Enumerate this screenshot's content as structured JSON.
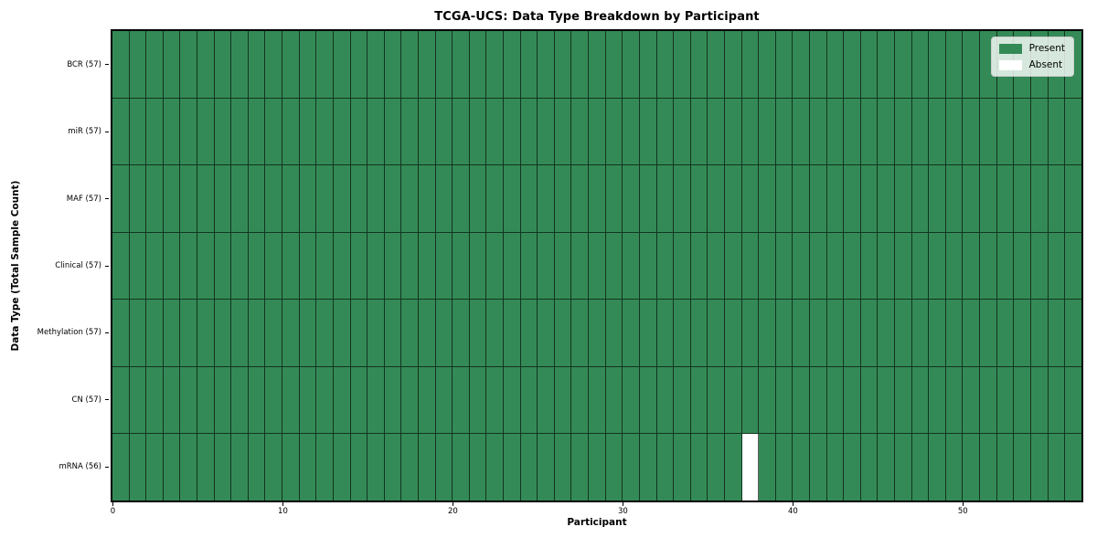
{
  "chart_data": {
    "type": "heatmap",
    "title": "TCGA-UCS: Data Type Breakdown by Participant",
    "xlabel": "Participant",
    "ylabel": "Data Type (Total Sample Count)",
    "n_participants": 57,
    "x_ticks": [
      0,
      10,
      20,
      30,
      40,
      50
    ],
    "rows": [
      {
        "label": "BCR (57)",
        "data_type": "BCR",
        "present_count": 57,
        "absent_participants": []
      },
      {
        "label": "miR (57)",
        "data_type": "miR",
        "present_count": 57,
        "absent_participants": []
      },
      {
        "label": "MAF (57)",
        "data_type": "MAF",
        "present_count": 57,
        "absent_participants": []
      },
      {
        "label": "Clinical (57)",
        "data_type": "Clinical",
        "present_count": 57,
        "absent_participants": []
      },
      {
        "label": "Methylation (57)",
        "data_type": "Methylation",
        "present_count": 57,
        "absent_participants": []
      },
      {
        "label": "CN (57)",
        "data_type": "CN",
        "present_count": 57,
        "absent_participants": []
      },
      {
        "label": "mRNA (56)",
        "data_type": "mRNA",
        "present_count": 56,
        "absent_participants": [
          37
        ]
      }
    ],
    "legend": {
      "position": "upper right",
      "present_label": "Present",
      "absent_label": "Absent"
    },
    "colors": {
      "present": "#348a56",
      "absent": "#ffffff",
      "cell_edge": "rgba(0,0,0,0.62)"
    },
    "grid": "cell-edges-only"
  }
}
